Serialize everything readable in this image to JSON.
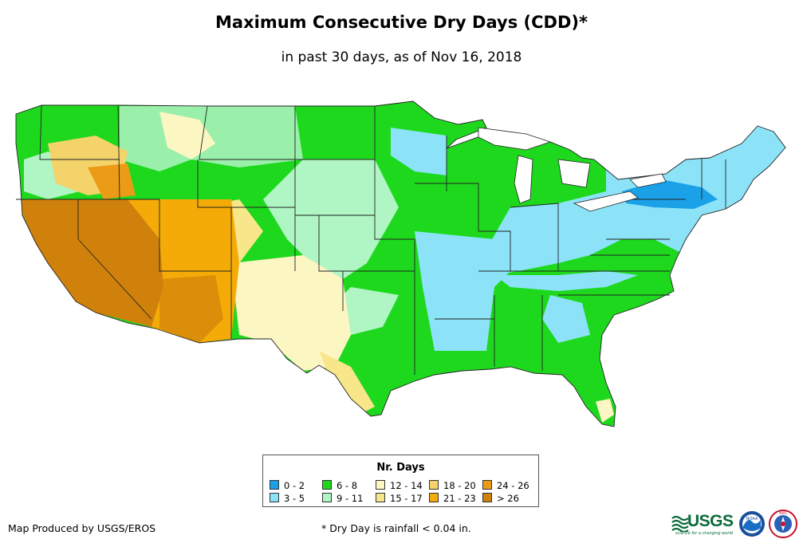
{
  "title": "Maximum Consecutive Dry Days (CDD)*",
  "subtitle": "in past 30 days, as of Nov 16, 2018",
  "legend": {
    "title": "Nr. Days",
    "items": [
      {
        "label": "0 - 2",
        "color": "#1aa1e8"
      },
      {
        "label": "3 - 5",
        "color": "#8ce3f7"
      },
      {
        "label": "6 - 8",
        "color": "#1ed81e"
      },
      {
        "label": "9 - 11",
        "color": "#b0f5c4"
      },
      {
        "label": "12 - 14",
        "color": "#fcf6c3"
      },
      {
        "label": "15 - 17",
        "color": "#f8e78a"
      },
      {
        "label": "18 - 20",
        "color": "#f4d36a"
      },
      {
        "label": "21 - 23",
        "color": "#f5ab07"
      },
      {
        "label": "24 - 26",
        "color": "#eb9b16"
      },
      {
        "label": "> 26",
        "color": "#d0810b"
      }
    ]
  },
  "credit": "Map Produced by USGS/EROS",
  "footnote": "* Dry Day is rainfall < 0.04 in.",
  "logos": {
    "usgs": "USGS",
    "usgs_tagline": "science for a changing world",
    "noaa": "NOAA",
    "nws": "NWS"
  }
}
